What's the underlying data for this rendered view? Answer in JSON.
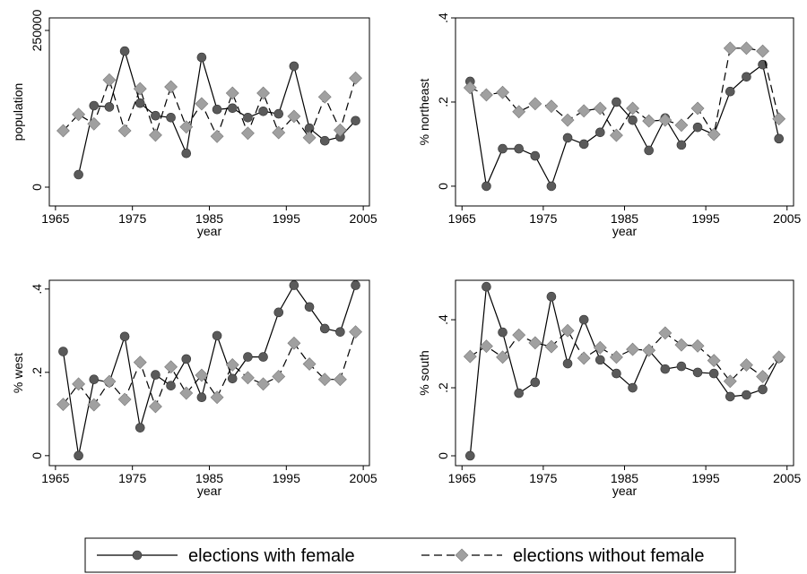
{
  "chart_data": [
    {
      "type": "line",
      "ylabel": "population",
      "xlabel": "year",
      "x": [
        1966,
        1968,
        1970,
        1972,
        1974,
        1976,
        1978,
        1980,
        1982,
        1984,
        1986,
        1988,
        1990,
        1992,
        1994,
        1996,
        1998,
        2000,
        2002,
        2004
      ],
      "xlim": [
        1964.2,
        2005.8
      ],
      "xticks": [
        1965,
        1975,
        1985,
        1995,
        2005
      ],
      "ylim": [
        -30000,
        270000
      ],
      "yticks": [
        0,
        250000
      ],
      "series": [
        {
          "name": "elections with female",
          "color": "#5a5a5a",
          "values": [
            null,
            20000,
            130000,
            128000,
            217000,
            134000,
            114000,
            111000,
            54000,
            207000,
            124000,
            126000,
            111000,
            121000,
            117000,
            193000,
            94000,
            74000,
            80000,
            106000
          ]
        },
        {
          "name": "elections without female",
          "color": "#a0a0a0",
          "values": [
            90000,
            116000,
            101000,
            171000,
            90000,
            157000,
            83000,
            160000,
            96000,
            133000,
            81000,
            150000,
            86000,
            150000,
            87000,
            113000,
            79000,
            144000,
            91000,
            174000
          ]
        }
      ]
    },
    {
      "type": "line",
      "ylabel": "% northeast",
      "xlabel": "year",
      "x": [
        1966,
        1968,
        1970,
        1972,
        1974,
        1976,
        1978,
        1980,
        1982,
        1984,
        1986,
        1988,
        1990,
        1992,
        1994,
        1996,
        1998,
        2000,
        2002,
        2004
      ],
      "xlim": [
        1964.2,
        2005.8
      ],
      "xticks": [
        1965,
        1975,
        1985,
        1995,
        2005
      ],
      "ylim": [
        -0.047,
        0.4
      ],
      "yticks": [
        0,
        {
          "value": 0.2,
          "label": ".2"
        },
        {
          "value": 0.4,
          "label": ".4"
        }
      ],
      "series": [
        {
          "color": "#5a5a5a",
          "values": [
            0.249,
            0,
            0.089,
            0.089,
            0.072,
            0,
            0.115,
            0.1,
            0.128,
            0.2,
            0.157,
            0.085,
            0.162,
            0.098,
            0.14,
            0.123,
            0.225,
            0.26,
            0.289,
            0.113
          ]
        },
        {
          "color": "#a0a0a0",
          "values": [
            0.234,
            0.217,
            0.223,
            0.177,
            0.196,
            0.19,
            0.157,
            0.179,
            0.185,
            0.121,
            0.185,
            0.155,
            0.157,
            0.145,
            0.185,
            0.123,
            0.328,
            0.328,
            0.321,
            0.16
          ]
        }
      ]
    },
    {
      "type": "line",
      "ylabel": "% west",
      "xlabel": "year",
      "x": [
        1966,
        1968,
        1970,
        1972,
        1974,
        1976,
        1978,
        1980,
        1982,
        1984,
        1986,
        1988,
        1990,
        1992,
        1994,
        1996,
        1998,
        2000,
        2002,
        2004
      ],
      "xlim": [
        1964.2,
        2005.8
      ],
      "xticks": [
        1965,
        1975,
        1985,
        1995,
        2005
      ],
      "ylim": [
        -0.024,
        0.421
      ],
      "yticks": [
        0,
        {
          "value": 0.2,
          "label": ".2"
        },
        {
          "value": 0.4,
          "label": ".4"
        }
      ],
      "series": [
        {
          "color": "#5a5a5a",
          "values": [
            0.25,
            0,
            0.183,
            0.176,
            0.286,
            0.067,
            0.194,
            0.168,
            0.232,
            0.14,
            0.288,
            0.185,
            0.237,
            0.237,
            0.344,
            0.409,
            0.357,
            0.305,
            0.297,
            0.409
          ]
        },
        {
          "color": "#a0a0a0",
          "values": [
            0.123,
            0.172,
            0.122,
            0.178,
            0.135,
            0.224,
            0.118,
            0.213,
            0.15,
            0.193,
            0.14,
            0.218,
            0.187,
            0.172,
            0.19,
            0.27,
            0.22,
            0.183,
            0.183,
            0.297
          ]
        }
      ]
    },
    {
      "type": "line",
      "ylabel": "% south",
      "xlabel": "year",
      "x": [
        1966,
        1968,
        1970,
        1972,
        1974,
        1976,
        1978,
        1980,
        1982,
        1984,
        1986,
        1988,
        1990,
        1992,
        1994,
        1996,
        1998,
        2000,
        2002,
        2004
      ],
      "xlim": [
        1964.2,
        2005.8
      ],
      "xticks": [
        1965,
        1975,
        1985,
        1995,
        2005
      ],
      "ylim": [
        -0.029,
        0.516
      ],
      "yticks": [
        0,
        {
          "value": 0.2,
          "label": ".2"
        },
        {
          "value": 0.4,
          "label": ".4"
        }
      ],
      "series": [
        {
          "color": "#5a5a5a",
          "values": [
            0,
            0.497,
            0.363,
            0.184,
            0.216,
            0.468,
            0.271,
            0.4,
            0.282,
            0.242,
            0.2,
            0.31,
            0.255,
            0.263,
            0.245,
            0.242,
            0.174,
            0.179,
            0.195,
            0.287
          ]
        },
        {
          "color": "#a0a0a0",
          "values": [
            0.292,
            0.322,
            0.29,
            0.355,
            0.332,
            0.321,
            0.368,
            0.287,
            0.318,
            0.29,
            0.313,
            0.31,
            0.361,
            0.326,
            0.323,
            0.28,
            0.219,
            0.267,
            0.233,
            0.29
          ]
        }
      ]
    }
  ]
}
